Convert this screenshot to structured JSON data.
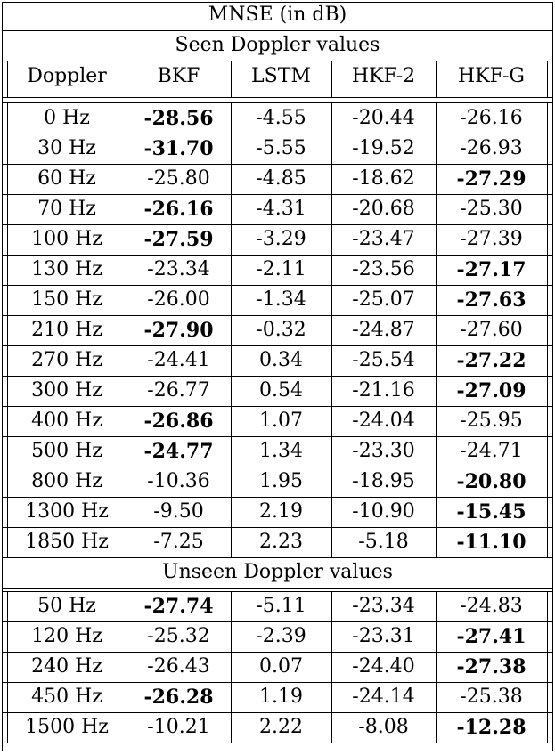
{
  "title": "MNSE (in dB)",
  "seen_label": "Seen Doppler values",
  "unseen_label": "Unseen Doppler values",
  "columns": [
    "Doppler",
    "BKF",
    "LSTM",
    "HKF-2",
    "HKF-G"
  ],
  "seen_rows": [
    {
      "doppler": "0 Hz",
      "values": [
        "-28.56",
        "-4.55",
        "-20.44",
        "-26.16"
      ],
      "best": 0
    },
    {
      "doppler": "30 Hz",
      "values": [
        "-31.70",
        "-5.55",
        "-19.52",
        "-26.93"
      ],
      "best": 0
    },
    {
      "doppler": "60 Hz",
      "values": [
        "-25.80",
        "-4.85",
        "-18.62",
        "-27.29"
      ],
      "best": 3
    },
    {
      "doppler": "70 Hz",
      "values": [
        "-26.16",
        "-4.31",
        "-20.68",
        "-25.30"
      ],
      "best": 0
    },
    {
      "doppler": "100 Hz",
      "values": [
        "-27.59",
        "-3.29",
        "-23.47",
        "-27.39"
      ],
      "best": 0
    },
    {
      "doppler": "130 Hz",
      "values": [
        "-23.34",
        "-2.11",
        "-23.56",
        "-27.17"
      ],
      "best": 3
    },
    {
      "doppler": "150 Hz",
      "values": [
        "-26.00",
        "-1.34",
        "-25.07",
        "-27.63"
      ],
      "best": 3
    },
    {
      "doppler": "210 Hz",
      "values": [
        "-27.90",
        "-0.32",
        "-24.87",
        "-27.60"
      ],
      "best": 0
    },
    {
      "doppler": "270 Hz",
      "values": [
        "-24.41",
        "0.34",
        "-25.54",
        "-27.22"
      ],
      "best": 3
    },
    {
      "doppler": "300 Hz",
      "values": [
        "-26.77",
        "0.54",
        "-21.16",
        "-27.09"
      ],
      "best": 3
    },
    {
      "doppler": "400 Hz",
      "values": [
        "-26.86",
        "1.07",
        "-24.04",
        "-25.95"
      ],
      "best": 0
    },
    {
      "doppler": "500 Hz",
      "values": [
        "-24.77",
        "1.34",
        "-23.30",
        "-24.71"
      ],
      "best": 0
    },
    {
      "doppler": "800 Hz",
      "values": [
        "-10.36",
        "1.95",
        "-18.95",
        "-20.80"
      ],
      "best": 3
    },
    {
      "doppler": "1300 Hz",
      "values": [
        "-9.50",
        "2.19",
        "-10.90",
        "-15.45"
      ],
      "best": 3
    },
    {
      "doppler": "1850 Hz",
      "values": [
        "-7.25",
        "2.23",
        "-5.18",
        "-11.10"
      ],
      "best": 3
    }
  ],
  "unseen_rows": [
    {
      "doppler": "50 Hz",
      "values": [
        "-27.74",
        "-5.11",
        "-23.34",
        "-24.83"
      ],
      "best": 0
    },
    {
      "doppler": "120 Hz",
      "values": [
        "-25.32",
        "-2.39",
        "-23.31",
        "-27.41"
      ],
      "best": 3
    },
    {
      "doppler": "240 Hz",
      "values": [
        "-26.43",
        "0.07",
        "-24.40",
        "-27.38"
      ],
      "best": 3
    },
    {
      "doppler": "450 Hz",
      "values": [
        "-26.28",
        "1.19",
        "-24.14",
        "-25.38"
      ],
      "best": 0
    },
    {
      "doppler": "1500 Hz",
      "values": [
        "-10.21",
        "2.22",
        "-8.08",
        "-12.28"
      ],
      "best": 3
    }
  ]
}
